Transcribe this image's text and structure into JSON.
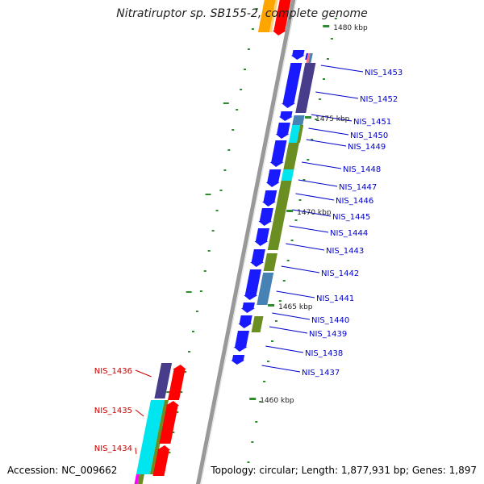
{
  "title": "Nitratiruptor sp. SB155-2, complete genome",
  "accession": "Accession: NC_009662",
  "summary": "Topology: circular; Length: 1,877,931 bp; Genes: 1,897",
  "colors": {
    "forward_cds": "#1a1aff",
    "olive_segment": "#6b8e23",
    "cyan_segment": "#00e5ee",
    "steelblue_segment": "#4682b4",
    "purple_segment": "#483d8b",
    "red_cds": "#ff0000",
    "orange_cds": "#ffa500",
    "tick": "#2e8b2e",
    "backbone": "#999999",
    "label_blue": "#0000cc",
    "label_red": "#cc0000"
  },
  "scale_labels": [
    "1480 kbp",
    "1475 kbp",
    "1470 kbp",
    "1465 kbp",
    "1460 kbp"
  ],
  "gene_labels_right": [
    "NIS_1453",
    "NIS_1452",
    "NIS_1451",
    "NIS_1450",
    "NIS_1449",
    "NIS_1448",
    "NIS_1447",
    "NIS_1446",
    "NIS_1445",
    "NIS_1444",
    "NIS_1443",
    "NIS_1442",
    "NIS_1441",
    "NIS_1440",
    "NIS_1439",
    "NIS_1438",
    "NIS_1437"
  ],
  "gene_labels_left": [
    "NIS_1436",
    "NIS_1435",
    "NIS_1434"
  ]
}
